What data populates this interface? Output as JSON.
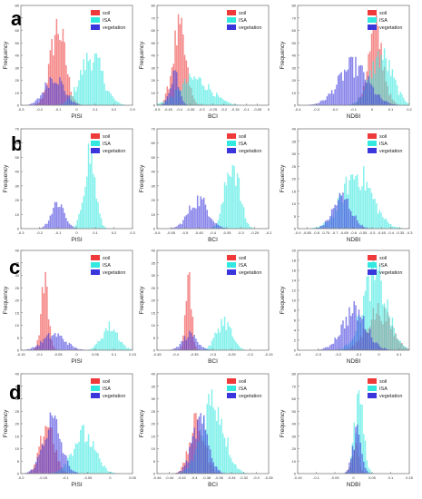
{
  "legend_labels": [
    "soil",
    "ISA",
    "vegetation"
  ],
  "colors": {
    "soil": "#ee3a3a",
    "ISA": "#34e8e0",
    "vegetation": "#3b36dc",
    "frame": "#7d7d7d",
    "tick_text": "#333333"
  },
  "yaxis_label": "Frequency",
  "chart_data": [
    {
      "panel": "a",
      "type": "histogram",
      "xlabel": "PISI",
      "xlim": [
        -0.3,
        0.3
      ],
      "xticks": [
        "-0.3",
        "-0.2",
        "-0.1",
        "0",
        "0.1",
        "0.2",
        "0.3"
      ],
      "ylim": [
        0,
        80
      ],
      "yticks": [
        "0",
        "10",
        "20",
        "30",
        "40",
        "50",
        "60",
        "70",
        "80"
      ],
      "legend": "top-right",
      "series": [
        {
          "name": "soil",
          "peak_x": -0.1,
          "spread": 0.04,
          "max": 80
        },
        {
          "name": "ISA",
          "peak_x": 0.08,
          "spread": 0.06,
          "max": 50
        },
        {
          "name": "vegetation",
          "peak_x": -0.12,
          "spread": 0.05,
          "max": 30
        }
      ]
    },
    {
      "panel": "a",
      "type": "histogram",
      "xlabel": "BCI",
      "xlim": [
        -0.5,
        0
      ],
      "xticks": [
        "-0.5",
        "-0.45",
        "-0.4",
        "-0.35",
        "-0.3",
        "-0.25",
        "-0.2",
        "-0.15",
        "-0.1",
        "-0.05",
        "0"
      ],
      "ylim": [
        0,
        80
      ],
      "yticks": [
        "0",
        "10",
        "20",
        "30",
        "40",
        "50",
        "60",
        "70",
        "80"
      ],
      "legend": "top-right",
      "series": [
        {
          "name": "soil",
          "peak_x": -0.4,
          "spread": 0.03,
          "max": 75
        },
        {
          "name": "ISA",
          "peak_x": -0.33,
          "spread": 0.07,
          "max": 27
        },
        {
          "name": "vegetation",
          "peak_x": -0.42,
          "spread": 0.02,
          "max": 35
        }
      ]
    },
    {
      "panel": "a",
      "type": "histogram",
      "xlabel": "NDBI",
      "xlim": [
        -0.4,
        0.2
      ],
      "xticks": [
        "-0.4",
        "-0.3",
        "-0.2",
        "-0.1",
        "0",
        "0.1",
        "0.2"
      ],
      "ylim": [
        0,
        80
      ],
      "yticks": [
        "0",
        "10",
        "20",
        "30",
        "40",
        "50",
        "60",
        "70",
        "80"
      ],
      "legend": "top-right",
      "series": [
        {
          "name": "soil",
          "peak_x": 0.02,
          "spread": 0.04,
          "max": 75
        },
        {
          "name": "ISA",
          "peak_x": 0.05,
          "spread": 0.06,
          "max": 50
        },
        {
          "name": "vegetation",
          "peak_x": -0.1,
          "spread": 0.08,
          "max": 40
        }
      ]
    },
    {
      "panel": "b",
      "type": "histogram",
      "xlabel": "PISI",
      "xlim": [
        -0.3,
        0.3
      ],
      "xticks": [
        "-0.3",
        "-0.2",
        "-0.1",
        "0",
        "0.1",
        "0.2",
        "0.3"
      ],
      "ylim": [
        0,
        70
      ],
      "yticks": [
        "0",
        "10",
        "20",
        "30",
        "40",
        "50",
        "60",
        "70"
      ],
      "legend": "top-right",
      "series": [
        {
          "name": "soil",
          "peak_x": 0,
          "spread": 0.01,
          "max": 0
        },
        {
          "name": "ISA",
          "peak_x": 0.07,
          "spread": 0.03,
          "max": 67
        },
        {
          "name": "vegetation",
          "peak_x": -0.1,
          "spread": 0.035,
          "max": 24
        }
      ]
    },
    {
      "panel": "b",
      "type": "histogram",
      "xlabel": "BCI",
      "xlim": [
        -0.6,
        -0.2
      ],
      "xticks": [
        "-0.6",
        "-0.55",
        "-0.5",
        "-0.45",
        "-0.4",
        "-0.35",
        "-0.3",
        "-0.25",
        "-0.2"
      ],
      "ylim": [
        0,
        70
      ],
      "yticks": [
        "0",
        "10",
        "20",
        "30",
        "40",
        "50",
        "60",
        "70"
      ],
      "legend": "top-right",
      "series": [
        {
          "name": "soil",
          "peak_x": -0.3,
          "spread": 0.01,
          "max": 0
        },
        {
          "name": "ISA",
          "peak_x": -0.33,
          "spread": 0.025,
          "max": 60
        },
        {
          "name": "vegetation",
          "peak_x": -0.45,
          "spread": 0.035,
          "max": 26
        }
      ]
    },
    {
      "panel": "b",
      "type": "histogram",
      "xlabel": "NDBI",
      "xlim": [
        -0.9,
        -0.3
      ],
      "xticks": [
        "-0.9",
        "-0.85",
        "-0.8",
        "-0.75",
        "-0.7",
        "-0.65",
        "-0.6",
        "-0.55",
        "-0.5",
        "-0.45",
        "-0.4",
        "-0.35",
        "-0.3"
      ],
      "ylim": [
        0,
        40
      ],
      "yticks": [
        "0",
        "5",
        "10",
        "15",
        "20",
        "25",
        "30",
        "35",
        "40"
      ],
      "legend": "top-right",
      "series": [
        {
          "name": "soil",
          "peak_x": -0.6,
          "spread": 0.01,
          "max": 0
        },
        {
          "name": "ISA",
          "peak_x": -0.58,
          "spread": 0.08,
          "max": 28
        },
        {
          "name": "vegetation",
          "peak_x": -0.66,
          "spread": 0.05,
          "max": 16
        }
      ]
    },
    {
      "panel": "c",
      "type": "histogram",
      "xlabel": "PISI",
      "xlim": [
        -0.15,
        0.15
      ],
      "xticks": [
        "-0.15",
        "-0.1",
        "-0.05",
        "0",
        "0.05",
        "0.1",
        "0.15"
      ],
      "ylim": [
        0,
        40
      ],
      "yticks": [
        "0",
        "5",
        "10",
        "15",
        "20",
        "25",
        "30",
        "35",
        "40"
      ],
      "legend": "top-right",
      "series": [
        {
          "name": "soil",
          "peak_x": -0.085,
          "spread": 0.01,
          "max": 35
        },
        {
          "name": "ISA",
          "peak_x": 0.09,
          "spread": 0.022,
          "max": 12
        },
        {
          "name": "vegetation",
          "peak_x": -0.06,
          "spread": 0.03,
          "max": 8
        }
      ]
    },
    {
      "panel": "c",
      "type": "histogram",
      "xlabel": "BCI",
      "xlim": [
        -0.45,
        -0.15
      ],
      "xticks": [
        "-0.45",
        "-0.4",
        "-0.35",
        "-0.3",
        "-0.25",
        "-0.2",
        "-0.15"
      ],
      "ylim": [
        0,
        40
      ],
      "yticks": [
        "0",
        "5",
        "10",
        "15",
        "20",
        "25",
        "30",
        "35",
        "40"
      ],
      "legend": "top-right",
      "series": [
        {
          "name": "soil",
          "peak_x": -0.365,
          "spread": 0.008,
          "max": 40
        },
        {
          "name": "ISA",
          "peak_x": -0.27,
          "spread": 0.02,
          "max": 15
        },
        {
          "name": "vegetation",
          "peak_x": -0.36,
          "spread": 0.02,
          "max": 8
        }
      ]
    },
    {
      "panel": "c",
      "type": "histogram",
      "xlabel": "NDBI",
      "xlim": [
        -0.4,
        0.15
      ],
      "xticks": [
        "-0.4",
        "-0.3",
        "-0.2",
        "-0.1",
        "0",
        "0.1"
      ],
      "ylim": [
        0,
        20
      ],
      "yticks": [
        "0",
        "2",
        "4",
        "6",
        "8",
        "10",
        "12",
        "14",
        "16",
        "18",
        "20"
      ],
      "legend": "top-right",
      "series": [
        {
          "name": "soil",
          "peak_x": 0,
          "spread": 0.06,
          "max": 10
        },
        {
          "name": "ISA",
          "peak_x": -0.02,
          "spread": 0.06,
          "max": 19
        },
        {
          "name": "vegetation",
          "peak_x": -0.12,
          "spread": 0.06,
          "max": 10
        }
      ]
    },
    {
      "panel": "d",
      "type": "histogram",
      "xlabel": "PISI",
      "xlim": [
        -0.2,
        0.05
      ],
      "xticks": [
        "-0.2",
        "-0.15",
        "-0.1",
        "-0.05",
        "0",
        "0.05"
      ],
      "ylim": [
        0,
        40
      ],
      "yticks": [
        "0",
        "5",
        "10",
        "15",
        "20",
        "25",
        "30",
        "35",
        "40"
      ],
      "legend": "top-right",
      "series": [
        {
          "name": "soil",
          "peak_x": -0.14,
          "spread": 0.015,
          "max": 26
        },
        {
          "name": "ISA",
          "peak_x": -0.06,
          "spread": 0.025,
          "max": 20
        },
        {
          "name": "vegetation",
          "peak_x": -0.13,
          "spread": 0.02,
          "max": 27
        }
      ]
    },
    {
      "panel": "d",
      "type": "histogram",
      "xlabel": "BCI",
      "xlim": [
        -0.46,
        -0.28
      ],
      "xticks": [
        "-0.46",
        "-0.44",
        "-0.42",
        "-0.4",
        "-0.38",
        "-0.36",
        "-0.34",
        "-0.32",
        "-0.3",
        "-0.28"
      ],
      "ylim": [
        0,
        40
      ],
      "yticks": [
        "0",
        "5",
        "10",
        "15",
        "20",
        "25",
        "30",
        "35",
        "40"
      ],
      "legend": "top-right",
      "series": [
        {
          "name": "soil",
          "peak_x": -0.395,
          "spread": 0.012,
          "max": 26
        },
        {
          "name": "ISA",
          "peak_x": -0.37,
          "spread": 0.018,
          "max": 38
        },
        {
          "name": "vegetation",
          "peak_x": -0.39,
          "spread": 0.013,
          "max": 26
        }
      ]
    },
    {
      "panel": "d",
      "type": "histogram",
      "xlabel": "NDBI",
      "xlim": [
        -0.15,
        0.15
      ],
      "xticks": [
        "-0.15",
        "-0.1",
        "-0.05",
        "0",
        "0.05",
        "0.1",
        "0.15"
      ],
      "ylim": [
        0,
        80
      ],
      "yticks": [
        "0",
        "10",
        "20",
        "30",
        "40",
        "50",
        "60",
        "70",
        "80"
      ],
      "legend": "top-right",
      "series": [
        {
          "name": "soil",
          "peak_x": 0.005,
          "spread": 0.01,
          "max": 28
        },
        {
          "name": "ISA",
          "peak_x": 0.015,
          "spread": 0.012,
          "max": 75
        },
        {
          "name": "vegetation",
          "peak_x": 0.01,
          "spread": 0.012,
          "max": 40
        }
      ]
    }
  ]
}
